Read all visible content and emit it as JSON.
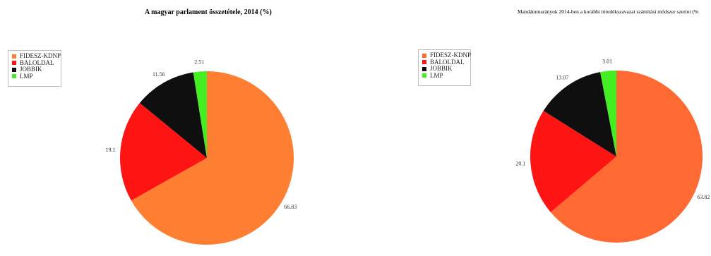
{
  "chart_data": [
    {
      "type": "pie",
      "title": "A magyar parlament összetétele, 2014 (%)",
      "legend": {
        "placement": "top-left"
      },
      "labels": [
        "FIDESZ-KDNP",
        "BALOLDAL",
        "JOBBIK",
        "LMP"
      ],
      "values": [
        66.83,
        19.1,
        11.56,
        2.51
      ],
      "value_labels": [
        "66.83",
        "19.1",
        "11.56",
        "2.51"
      ],
      "colors": [
        "#ff7f32",
        "#ff1414",
        "#0f0f0f",
        "#44ee22"
      ]
    },
    {
      "type": "pie",
      "title": "Mandátumarányok 2014-ben a korábbi töredékszavazat számítási módszer szerint (%",
      "legend": {
        "placement": "top-left"
      },
      "labels": [
        "FIDESZ-KDNP",
        "BALOLDAL",
        "JOBBIK",
        "LMP"
      ],
      "values": [
        63.82,
        20.1,
        13.07,
        3.01
      ],
      "value_labels": [
        "63.82",
        "20.1",
        "13.07",
        "3.01"
      ],
      "colors": [
        "#ff6a32",
        "#ff1414",
        "#0f0f0f",
        "#44ee22"
      ]
    }
  ]
}
